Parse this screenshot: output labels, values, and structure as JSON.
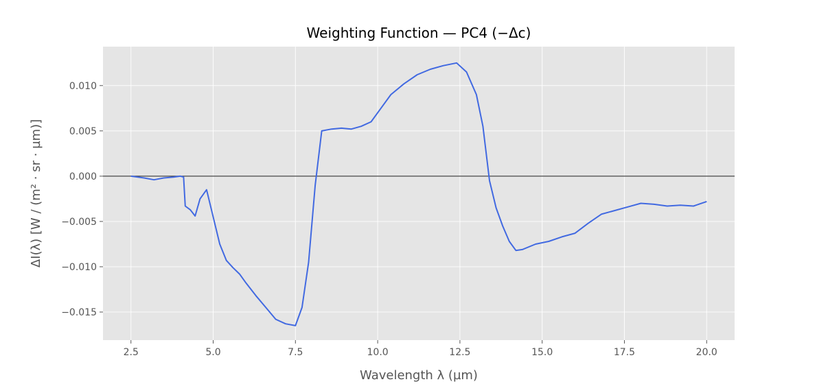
{
  "chart_data": {
    "type": "line",
    "title": "Weighting Function — PC4 (−Δc)",
    "xlabel": "Wavelength λ (µm)",
    "ylabel": "ΔI(λ) [W / (m² · sr · µm)]",
    "xlim": [
      1.65,
      20.85
    ],
    "ylim": [
      -0.0181,
      0.0143
    ],
    "x_ticks": [
      2.5,
      5.0,
      7.5,
      10.0,
      12.5,
      15.0,
      17.5,
      20.0
    ],
    "x_tick_labels": [
      "2.5",
      "5.0",
      "7.5",
      "10.0",
      "12.5",
      "15.0",
      "17.5",
      "20.0"
    ],
    "y_ticks": [
      -0.015,
      -0.01,
      -0.005,
      0.0,
      0.005,
      0.01
    ],
    "y_tick_labels": [
      "−0.015",
      "−0.010",
      "−0.005",
      "0.000",
      "0.005",
      "0.010"
    ],
    "grid": true,
    "reference_line_y": 0.0,
    "colors": {
      "series": "#4169e1",
      "background": "#e5e5e5",
      "grid": "#ffffff",
      "zero_line": "#444444"
    },
    "series": [
      {
        "x": [
          2.5,
          2.9,
          3.2,
          3.5,
          3.8,
          4.0,
          4.1,
          4.15,
          4.3,
          4.45,
          4.6,
          4.8,
          5.0,
          5.2,
          5.4,
          5.6,
          5.8,
          6.0,
          6.3,
          6.6,
          6.9,
          7.2,
          7.5,
          7.7,
          7.9,
          8.1,
          8.3,
          8.6,
          8.9,
          9.2,
          9.5,
          9.8,
          10.1,
          10.4,
          10.8,
          11.2,
          11.6,
          12.0,
          12.4,
          12.7,
          13.0,
          13.2,
          13.4,
          13.6,
          13.8,
          14.0,
          14.2,
          14.4,
          14.8,
          15.2,
          15.6,
          16.0,
          16.4,
          16.8,
          17.2,
          17.6,
          18.0,
          18.4,
          18.8,
          19.2,
          19.6,
          20.0
        ],
        "y": [
          0.0,
          -0.0002,
          -0.0004,
          -0.0002,
          -0.0001,
          0.0,
          -0.0001,
          -0.0033,
          -0.0037,
          -0.0044,
          -0.0025,
          -0.0015,
          -0.0045,
          -0.0075,
          -0.0093,
          -0.0101,
          -0.0108,
          -0.0118,
          -0.0132,
          -0.0145,
          -0.0158,
          -0.0163,
          -0.0165,
          -0.0145,
          -0.0095,
          -0.001,
          0.005,
          0.0052,
          0.0053,
          0.0052,
          0.0055,
          0.006,
          0.0075,
          0.009,
          0.0102,
          0.0112,
          0.0118,
          0.0122,
          0.0125,
          0.0115,
          0.009,
          0.0055,
          -0.0005,
          -0.0035,
          -0.0055,
          -0.0072,
          -0.0082,
          -0.0081,
          -0.0075,
          -0.0072,
          -0.0067,
          -0.0063,
          -0.0052,
          -0.0042,
          -0.0038,
          -0.0034,
          -0.003,
          -0.0031,
          -0.0033,
          -0.0032,
          -0.0033,
          -0.0028
        ]
      }
    ]
  }
}
